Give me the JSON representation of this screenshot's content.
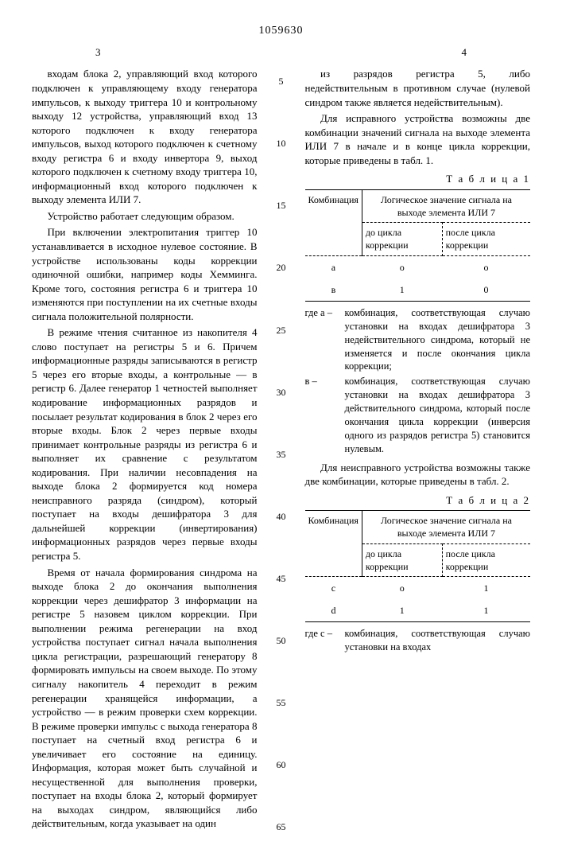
{
  "doc_number": "1059630",
  "page_left": "3",
  "page_right": "4",
  "line_numbers": [
    "5",
    "10",
    "15",
    "20",
    "25",
    "30",
    "35",
    "40",
    "45",
    "50",
    "55",
    "60",
    "65"
  ],
  "left": {
    "p1": "входам блока 2, управляющий вход которого подключен к управляющему входу генератора импульсов, к выходу триггера 10 и контрольному выходу 12 устройства, управляющий вход 13 которого подключен к входу генератора импульсов, выход которого подключен к счетному входу регистра 6 и входу инвертора 9, выход которого подключен к счетному входу триггера 10, информационный вход которого подключен к выходу элемента ИЛИ 7.",
    "p2": "Устройство работает следующим образом.",
    "p3": "При включении электропитания триггер 10 устанавливается в исходное нулевое состояние. В устройстве использованы коды коррекции одиночной ошибки, например коды Хемминга. Кроме того, состояния регистра 6 и триггера 10 изменяются при поступлении на их счетные входы сигнала положительной полярности.",
    "p4": "В режиме чтения считанное из накопителя 4 слово поступает на регистры 5 и 6. Причем информационные разряды записываются в регистр 5 через его вторые входы, а контрольные — в регистр 6. Далее генератор 1 четностей выполняет кодирование информационных разрядов и посылает результат кодирования в блок 2 через его вторые входы. Блок 2 через первые входы принимает контрольные разряды из регистра 6 и выполняет их сравнение с результатом кодирования. При наличии несовпадения на выходе блока 2 формируется код номера неисправного разряда (синдром), который поступает на входы дешифратора 3 для дальнейшей коррекции (инвертирования) информационных разрядов через первые входы регистра 5.",
    "p5": "Время от начала формирования синдрома на выходе блока 2 до окончания выполнения коррекции через дешифратор 3 информации на регистре 5 назовем циклом коррекции. При выполнении режима регенерации на вход устройства поступает сигнал начала выполнения цикла регистрации, разрешающий генератору 8 формировать импульсы на своем выходе. По этому сигналу накопитель 4 переходит в режим регенерации хранящейся информации, а устройство — в режим проверки схем коррекции. В режиме проверки импульс с выхода генератора 8 поступает на счетный вход регистра 6 и увеличивает его состояние на единицу. Информация, которая может быть случайной и несущественной для выполнения проверки, поступает на входы блока 2, который формирует на выходах синдром, являющийся либо действительным, когда указывает на один"
  },
  "right": {
    "p1": "из разрядов регистра 5, либо недействительным в противном случае (нулевой синдром также является недействительным).",
    "p2": "Для исправного устройства возможны две комбинации значений сигнала на выходе элемента ИЛИ 7 в начале и в конце цикла коррекции, которые приведены в табл. 1.",
    "table1_title": "Т а б л и ц а  1",
    "table1": {
      "col1": "Комбинация",
      "col2_merged": "Логическое значение сигнала на выходе элемента ИЛИ 7",
      "col2a": "до цикла коррекции",
      "col2b": "после цикла коррекции",
      "rows": [
        {
          "c": "а",
          "before": "о",
          "after": "о"
        },
        {
          "c": "в",
          "before": "1",
          "after": "0"
        }
      ]
    },
    "legend1_intro": "где а –",
    "legend1_a": "комбинация, соответствующая случаю установки на входах дешифратора 3 недействительного синдрома, который не изменяется и после окончания цикла коррекции;",
    "legend1_b_label": "в –",
    "legend1_b": "комбинация, соответствующая случаю установки на входах дешифратора 3 действительного синдрома, который после окончания цикла коррекции (инверсия одного из разрядов регистра 5) становится нулевым.",
    "p3": "Для неисправного устройства возможны также две комбинации, которые приведены в табл. 2.",
    "table2_title": "Т а б л и ц а  2",
    "table2": {
      "col1": "Комбинация",
      "col2_merged": "Логическое значение сигнала на выходе элемента ИЛИ 7",
      "col2a": "до цикла коррекции",
      "col2b": "после цикла коррекции",
      "rows": [
        {
          "c": "с",
          "before": "о",
          "after": "1"
        },
        {
          "c": "d",
          "before": "1",
          "after": "1"
        }
      ]
    },
    "legend2_intro": "где с –",
    "legend2_c": "комбинация, соответствующая случаю установки на входах"
  }
}
